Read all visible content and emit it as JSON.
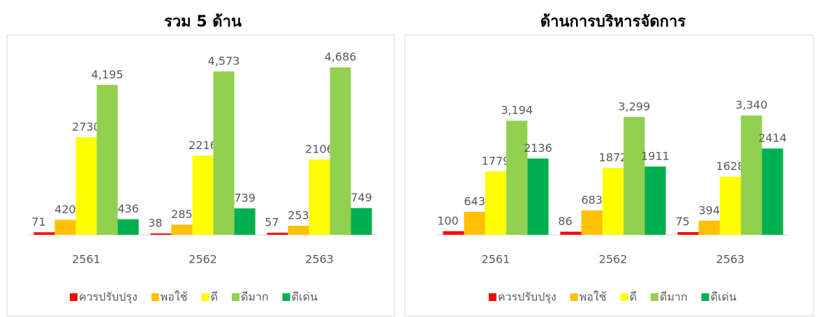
{
  "chart_data": [
    {
      "type": "bar",
      "title": "รวม 5 ด้าน",
      "categories": [
        "2561",
        "2562",
        "2563"
      ],
      "ylim": [
        0,
        5500
      ],
      "series": [
        {
          "name": "ควรปรับปรุง",
          "color": "#ff0000",
          "values": [
            71,
            38,
            57
          ]
        },
        {
          "name": "พอใช้",
          "color": "#ffc000",
          "values": [
            420,
            285,
            253
          ]
        },
        {
          "name": "ดี",
          "color": "#ffff00",
          "values": [
            2730,
            2216,
            2106
          ]
        },
        {
          "name": "ดีมาก",
          "color": "#92d050",
          "values": [
            4195,
            4573,
            4686
          ],
          "value_labels": [
            "4,195",
            "4,573",
            "4,686"
          ]
        },
        {
          "name": "ดีเด่น",
          "color": "#00b050",
          "values": [
            436,
            739,
            749
          ]
        }
      ]
    },
    {
      "type": "bar",
      "title": "ด้านการบริหารจัดการ",
      "categories": [
        "2561",
        "2562",
        "2563"
      ],
      "ylim": [
        0,
        5500
      ],
      "series": [
        {
          "name": "ควรปรับปรุง",
          "color": "#ff0000",
          "values": [
            100,
            86,
            75
          ]
        },
        {
          "name": "พอใช้",
          "color": "#ffc000",
          "values": [
            643,
            683,
            394
          ]
        },
        {
          "name": "ดี",
          "color": "#ffff00",
          "values": [
            1779,
            1872,
            1628
          ]
        },
        {
          "name": "ดีมาก",
          "color": "#92d050",
          "values": [
            3194,
            3299,
            3340
          ],
          "value_labels": [
            "3,194",
            "3,299",
            "3,340"
          ]
        },
        {
          "name": "ดีเด่น",
          "color": "#00b050",
          "values": [
            2136,
            1911,
            2414
          ]
        }
      ]
    }
  ]
}
